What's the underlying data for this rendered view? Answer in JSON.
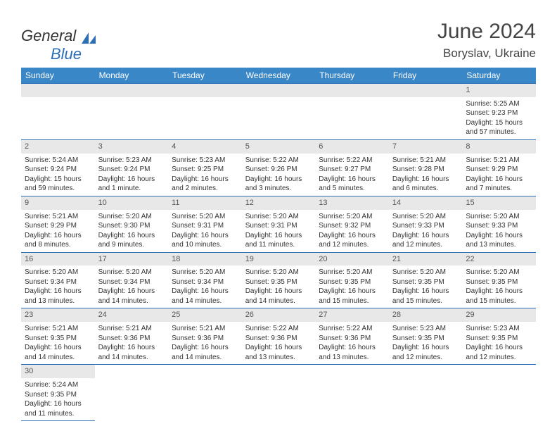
{
  "logo": {
    "text1": "General",
    "text2": "Blue"
  },
  "title": "June 2024",
  "location": "Boryslav, Ukraine",
  "colors": {
    "header_bg": "#3a87c8",
    "header_text": "#ffffff",
    "border": "#2d6fb5",
    "daynum_bg": "#e8e8e8"
  },
  "weekdays": [
    "Sunday",
    "Monday",
    "Tuesday",
    "Wednesday",
    "Thursday",
    "Friday",
    "Saturday"
  ],
  "days": {
    "1": {
      "sunrise": "Sunrise: 5:25 AM",
      "sunset": "Sunset: 9:23 PM",
      "daylight": "Daylight: 15 hours and 57 minutes."
    },
    "2": {
      "sunrise": "Sunrise: 5:24 AM",
      "sunset": "Sunset: 9:24 PM",
      "daylight": "Daylight: 15 hours and 59 minutes."
    },
    "3": {
      "sunrise": "Sunrise: 5:23 AM",
      "sunset": "Sunset: 9:24 PM",
      "daylight": "Daylight: 16 hours and 1 minute."
    },
    "4": {
      "sunrise": "Sunrise: 5:23 AM",
      "sunset": "Sunset: 9:25 PM",
      "daylight": "Daylight: 16 hours and 2 minutes."
    },
    "5": {
      "sunrise": "Sunrise: 5:22 AM",
      "sunset": "Sunset: 9:26 PM",
      "daylight": "Daylight: 16 hours and 3 minutes."
    },
    "6": {
      "sunrise": "Sunrise: 5:22 AM",
      "sunset": "Sunset: 9:27 PM",
      "daylight": "Daylight: 16 hours and 5 minutes."
    },
    "7": {
      "sunrise": "Sunrise: 5:21 AM",
      "sunset": "Sunset: 9:28 PM",
      "daylight": "Daylight: 16 hours and 6 minutes."
    },
    "8": {
      "sunrise": "Sunrise: 5:21 AM",
      "sunset": "Sunset: 9:29 PM",
      "daylight": "Daylight: 16 hours and 7 minutes."
    },
    "9": {
      "sunrise": "Sunrise: 5:21 AM",
      "sunset": "Sunset: 9:29 PM",
      "daylight": "Daylight: 16 hours and 8 minutes."
    },
    "10": {
      "sunrise": "Sunrise: 5:20 AM",
      "sunset": "Sunset: 9:30 PM",
      "daylight": "Daylight: 16 hours and 9 minutes."
    },
    "11": {
      "sunrise": "Sunrise: 5:20 AM",
      "sunset": "Sunset: 9:31 PM",
      "daylight": "Daylight: 16 hours and 10 minutes."
    },
    "12": {
      "sunrise": "Sunrise: 5:20 AM",
      "sunset": "Sunset: 9:31 PM",
      "daylight": "Daylight: 16 hours and 11 minutes."
    },
    "13": {
      "sunrise": "Sunrise: 5:20 AM",
      "sunset": "Sunset: 9:32 PM",
      "daylight": "Daylight: 16 hours and 12 minutes."
    },
    "14": {
      "sunrise": "Sunrise: 5:20 AM",
      "sunset": "Sunset: 9:33 PM",
      "daylight": "Daylight: 16 hours and 12 minutes."
    },
    "15": {
      "sunrise": "Sunrise: 5:20 AM",
      "sunset": "Sunset: 9:33 PM",
      "daylight": "Daylight: 16 hours and 13 minutes."
    },
    "16": {
      "sunrise": "Sunrise: 5:20 AM",
      "sunset": "Sunset: 9:34 PM",
      "daylight": "Daylight: 16 hours and 13 minutes."
    },
    "17": {
      "sunrise": "Sunrise: 5:20 AM",
      "sunset": "Sunset: 9:34 PM",
      "daylight": "Daylight: 16 hours and 14 minutes."
    },
    "18": {
      "sunrise": "Sunrise: 5:20 AM",
      "sunset": "Sunset: 9:34 PM",
      "daylight": "Daylight: 16 hours and 14 minutes."
    },
    "19": {
      "sunrise": "Sunrise: 5:20 AM",
      "sunset": "Sunset: 9:35 PM",
      "daylight": "Daylight: 16 hours and 14 minutes."
    },
    "20": {
      "sunrise": "Sunrise: 5:20 AM",
      "sunset": "Sunset: 9:35 PM",
      "daylight": "Daylight: 16 hours and 15 minutes."
    },
    "21": {
      "sunrise": "Sunrise: 5:20 AM",
      "sunset": "Sunset: 9:35 PM",
      "daylight": "Daylight: 16 hours and 15 minutes."
    },
    "22": {
      "sunrise": "Sunrise: 5:20 AM",
      "sunset": "Sunset: 9:35 PM",
      "daylight": "Daylight: 16 hours and 15 minutes."
    },
    "23": {
      "sunrise": "Sunrise: 5:21 AM",
      "sunset": "Sunset: 9:35 PM",
      "daylight": "Daylight: 16 hours and 14 minutes."
    },
    "24": {
      "sunrise": "Sunrise: 5:21 AM",
      "sunset": "Sunset: 9:36 PM",
      "daylight": "Daylight: 16 hours and 14 minutes."
    },
    "25": {
      "sunrise": "Sunrise: 5:21 AM",
      "sunset": "Sunset: 9:36 PM",
      "daylight": "Daylight: 16 hours and 14 minutes."
    },
    "26": {
      "sunrise": "Sunrise: 5:22 AM",
      "sunset": "Sunset: 9:36 PM",
      "daylight": "Daylight: 16 hours and 13 minutes."
    },
    "27": {
      "sunrise": "Sunrise: 5:22 AM",
      "sunset": "Sunset: 9:36 PM",
      "daylight": "Daylight: 16 hours and 13 minutes."
    },
    "28": {
      "sunrise": "Sunrise: 5:23 AM",
      "sunset": "Sunset: 9:35 PM",
      "daylight": "Daylight: 16 hours and 12 minutes."
    },
    "29": {
      "sunrise": "Sunrise: 5:23 AM",
      "sunset": "Sunset: 9:35 PM",
      "daylight": "Daylight: 16 hours and 12 minutes."
    },
    "30": {
      "sunrise": "Sunrise: 5:24 AM",
      "sunset": "Sunset: 9:35 PM",
      "daylight": "Daylight: 16 hours and 11 minutes."
    }
  },
  "grid": [
    [
      null,
      null,
      null,
      null,
      null,
      null,
      "1"
    ],
    [
      "2",
      "3",
      "4",
      "5",
      "6",
      "7",
      "8"
    ],
    [
      "9",
      "10",
      "11",
      "12",
      "13",
      "14",
      "15"
    ],
    [
      "16",
      "17",
      "18",
      "19",
      "20",
      "21",
      "22"
    ],
    [
      "23",
      "24",
      "25",
      "26",
      "27",
      "28",
      "29"
    ],
    [
      "30",
      null,
      null,
      null,
      null,
      null,
      null
    ]
  ]
}
